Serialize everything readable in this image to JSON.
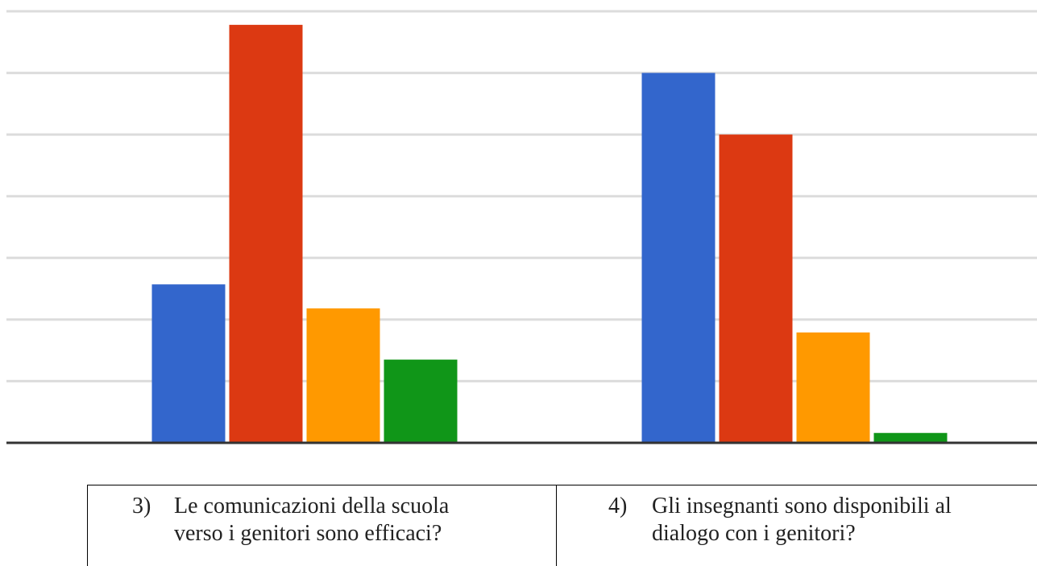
{
  "chart_data": {
    "type": "bar",
    "series": [
      {
        "color": "#3366cc",
        "values": [
          2.57,
          6.0
        ]
      },
      {
        "color": "#dc3912",
        "values": [
          6.78,
          5.0
        ]
      },
      {
        "color": "#ff9900",
        "values": [
          2.18,
          1.79
        ]
      },
      {
        "color": "#109618",
        "values": [
          1.35,
          0.16
        ]
      }
    ],
    "ylim": [
      0,
      7
    ],
    "yticks": [
      0,
      1,
      2,
      3,
      4,
      5,
      6,
      7
    ],
    "grid": true
  },
  "table": {
    "cells": [
      {
        "number": "3)",
        "lines": [
          "Le comunicazioni della scuola",
          "verso i genitori sono efficaci?"
        ]
      },
      {
        "number": "4)",
        "lines": [
          "Gli insegnanti sono disponibili al",
          "dialogo con i genitori?"
        ]
      }
    ]
  }
}
